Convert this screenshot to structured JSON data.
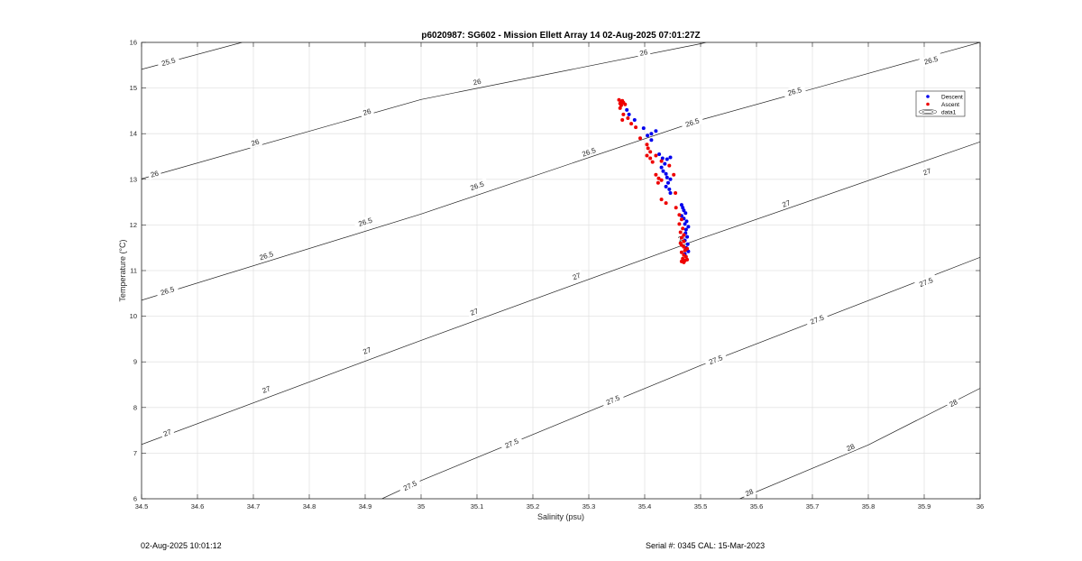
{
  "chart_data": {
    "type": "scatter",
    "title": "p6020987: SG602 - Mission Ellett Array 14 02-Aug-2025 07:01:27Z",
    "xlabel": "Salinity (psu)",
    "ylabel": "Temperature (°C)",
    "xlim": [
      34.5,
      36
    ],
    "ylim": [
      6,
      16
    ],
    "xticks": [
      "34.5",
      "34.6",
      "34.7",
      "34.8",
      "34.9",
      "35",
      "35.1",
      "35.2",
      "35.3",
      "35.4",
      "35.5",
      "35.6",
      "35.7",
      "35.8",
      "35.9",
      "36"
    ],
    "yticks": [
      "6",
      "7",
      "8",
      "9",
      "10",
      "11",
      "12",
      "13",
      "14",
      "15",
      "16"
    ],
    "grid": true,
    "legend_placement": "top-right",
    "legend": [
      "Descent",
      "Ascent",
      "data1"
    ],
    "colors": {
      "descent": "#0000ee",
      "ascent": "#ee0000",
      "contour": "#222222",
      "grid": "#e3e3e3"
    },
    "series": [
      {
        "name": "Descent",
        "points": [
          [
            35.368,
            14.52
          ],
          [
            35.372,
            14.42
          ],
          [
            35.382,
            14.3
          ],
          [
            35.398,
            14.12
          ],
          [
            35.405,
            13.96
          ],
          [
            35.412,
            14.0
          ],
          [
            35.42,
            14.06
          ],
          [
            35.412,
            13.86
          ],
          [
            35.426,
            13.55
          ],
          [
            35.432,
            13.46
          ],
          [
            35.44,
            13.44
          ],
          [
            35.446,
            13.48
          ],
          [
            35.436,
            13.34
          ],
          [
            35.43,
            13.26
          ],
          [
            35.433,
            13.18
          ],
          [
            35.438,
            13.12
          ],
          [
            35.44,
            13.04
          ],
          [
            35.446,
            13.0
          ],
          [
            35.442,
            12.92
          ],
          [
            35.438,
            12.84
          ],
          [
            35.444,
            12.78
          ],
          [
            35.446,
            12.7
          ],
          [
            35.466,
            12.44
          ],
          [
            35.468,
            12.38
          ],
          [
            35.47,
            12.32
          ],
          [
            35.473,
            12.26
          ],
          [
            35.466,
            12.2
          ],
          [
            35.47,
            12.14
          ],
          [
            35.475,
            12.08
          ],
          [
            35.472,
            12.02
          ],
          [
            35.478,
            11.96
          ],
          [
            35.474,
            11.9
          ],
          [
            35.473,
            11.82
          ],
          [
            35.476,
            11.74
          ],
          [
            35.472,
            11.66
          ],
          [
            35.477,
            11.58
          ],
          [
            35.474,
            11.5
          ],
          [
            35.478,
            11.42
          ],
          [
            35.472,
            11.36
          ]
        ]
      },
      {
        "name": "Ascent",
        "points": [
          [
            35.354,
            14.74
          ],
          [
            35.358,
            14.7
          ],
          [
            35.36,
            14.72
          ],
          [
            35.356,
            14.66
          ],
          [
            35.358,
            14.62
          ],
          [
            35.362,
            14.68
          ],
          [
            35.365,
            14.64
          ],
          [
            35.356,
            14.56
          ],
          [
            35.362,
            14.42
          ],
          [
            35.37,
            14.34
          ],
          [
            35.36,
            14.3
          ],
          [
            35.376,
            14.22
          ],
          [
            35.384,
            14.14
          ],
          [
            35.392,
            13.9
          ],
          [
            35.404,
            13.76
          ],
          [
            35.406,
            13.68
          ],
          [
            35.41,
            13.6
          ],
          [
            35.404,
            13.52
          ],
          [
            35.41,
            13.46
          ],
          [
            35.414,
            13.38
          ],
          [
            35.42,
            13.52
          ],
          [
            35.43,
            13.4
          ],
          [
            35.444,
            13.3
          ],
          [
            35.452,
            13.1
          ],
          [
            35.42,
            13.1
          ],
          [
            35.425,
            13.02
          ],
          [
            35.43,
            12.98
          ],
          [
            35.424,
            12.92
          ],
          [
            35.43,
            12.56
          ],
          [
            35.438,
            12.48
          ],
          [
            35.455,
            12.7
          ],
          [
            35.456,
            12.38
          ],
          [
            35.462,
            12.22
          ],
          [
            35.466,
            12.12
          ],
          [
            35.462,
            12.02
          ],
          [
            35.468,
            11.92
          ],
          [
            35.464,
            11.84
          ],
          [
            35.47,
            11.78
          ],
          [
            35.466,
            11.72
          ],
          [
            35.47,
            11.64
          ],
          [
            35.464,
            11.6
          ],
          [
            35.466,
            11.56
          ],
          [
            35.47,
            11.52
          ],
          [
            35.476,
            11.48
          ],
          [
            35.472,
            11.44
          ],
          [
            35.466,
            11.4
          ],
          [
            35.47,
            11.34
          ],
          [
            35.474,
            11.3
          ],
          [
            35.468,
            11.26
          ],
          [
            35.472,
            11.22
          ],
          [
            35.466,
            11.2
          ],
          [
            35.47,
            11.18
          ],
          [
            35.476,
            11.24
          ]
        ]
      },
      {
        "name": "data1",
        "type": "contour",
        "description_levels": "density contours (sigma-theta)",
        "lines": [
          {
            "level": "25.5",
            "points": [
              [
                34.5,
                15.41
              ],
              [
                34.68,
                16.0
              ]
            ]
          },
          {
            "level": "26",
            "points": [
              [
                34.5,
                13.01
              ],
              [
                35.0,
                14.75
              ],
              [
                35.5,
                15.97
              ],
              [
                35.51,
                16.0
              ]
            ]
          },
          {
            "level": "26.5",
            "points": [
              [
                34.5,
                10.35
              ],
              [
                35.0,
                12.24
              ],
              [
                35.5,
                14.3
              ],
              [
                36.0,
                16.0
              ]
            ]
          },
          {
            "level": "27",
            "points": [
              [
                34.5,
                7.19
              ],
              [
                35.0,
                9.47
              ],
              [
                35.5,
                11.7
              ],
              [
                36.0,
                13.82
              ]
            ]
          },
          {
            "level": "27.5",
            "points": [
              [
                34.93,
                6.0
              ],
              [
                35.0,
                6.4
              ],
              [
                35.5,
                8.92
              ],
              [
                36.0,
                11.29
              ]
            ]
          },
          {
            "level": "28",
            "points": [
              [
                35.57,
                6.0
              ],
              [
                35.8,
                7.18
              ],
              [
                36.0,
                8.42
              ]
            ]
          }
        ],
        "labels": [
          {
            "text": "25.5",
            "x": 34.548,
            "y": 15.58
          },
          {
            "text": "26",
            "x": 34.523,
            "y": 13.12
          },
          {
            "text": "26",
            "x": 34.703,
            "y": 13.81
          },
          {
            "text": "26",
            "x": 34.903,
            "y": 14.48
          },
          {
            "text": "26",
            "x": 35.1,
            "y": 15.14
          },
          {
            "text": "26",
            "x": 35.398,
            "y": 15.78
          },
          {
            "text": "26.5",
            "x": 34.546,
            "y": 10.56
          },
          {
            "text": "26.5",
            "x": 34.723,
            "y": 11.33
          },
          {
            "text": "26.5",
            "x": 34.9,
            "y": 12.07
          },
          {
            "text": "26.5",
            "x": 35.1,
            "y": 12.86
          },
          {
            "text": "26.5",
            "x": 35.3,
            "y": 13.6
          },
          {
            "text": "26.5",
            "x": 35.485,
            "y": 14.25
          },
          {
            "text": "26.5",
            "x": 35.668,
            "y": 14.93
          },
          {
            "text": "26.5",
            "x": 35.912,
            "y": 15.61
          },
          {
            "text": "27",
            "x": 34.546,
            "y": 7.45
          },
          {
            "text": "27",
            "x": 34.723,
            "y": 8.4
          },
          {
            "text": "27",
            "x": 34.903,
            "y": 9.25
          },
          {
            "text": "27",
            "x": 35.095,
            "y": 10.1
          },
          {
            "text": "27",
            "x": 35.278,
            "y": 10.88
          },
          {
            "text": "27",
            "x": 35.467,
            "y": 11.72
          },
          {
            "text": "27",
            "x": 35.653,
            "y": 12.47
          },
          {
            "text": "27",
            "x": 35.905,
            "y": 13.17
          },
          {
            "text": "27.5",
            "x": 34.98,
            "y": 6.29
          },
          {
            "text": "27.5",
            "x": 35.162,
            "y": 7.22
          },
          {
            "text": "27.5",
            "x": 35.343,
            "y": 8.17
          },
          {
            "text": "27.5",
            "x": 35.527,
            "y": 9.05
          },
          {
            "text": "27.5",
            "x": 35.708,
            "y": 9.93
          },
          {
            "text": "27.5",
            "x": 35.903,
            "y": 10.75
          },
          {
            "text": "28",
            "x": 35.587,
            "y": 6.14
          },
          {
            "text": "28",
            "x": 35.768,
            "y": 7.13
          },
          {
            "text": "28",
            "x": 35.952,
            "y": 8.1
          }
        ]
      }
    ]
  },
  "footer": {
    "left": "02-Aug-2025 10:01:12",
    "right": "Serial #: 0345  CAL: 15-Mar-2023"
  }
}
